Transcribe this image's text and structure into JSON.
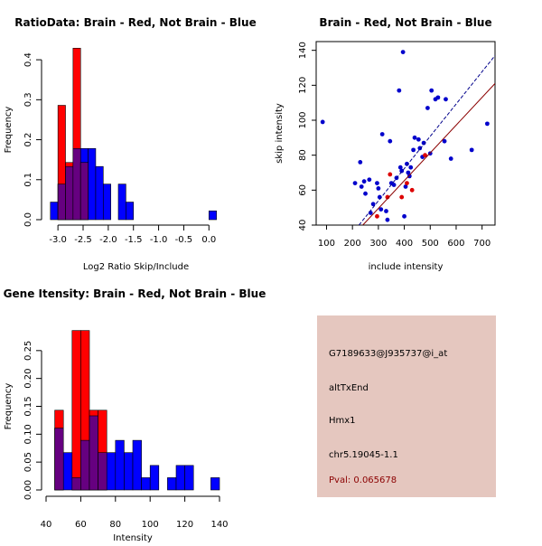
{
  "chart_data": [
    {
      "id": "ratio",
      "type": "bar",
      "title": "RatioData: Brain - Red, Not Brain - Blue",
      "xlabel": "Log2 Ratio Skip/Include",
      "ylabel": "Frequency",
      "xlim": [
        -3.2,
        0.3
      ],
      "ylim": [
        0,
        0.45
      ],
      "xticks": [
        -3.0,
        -2.5,
        -2.0,
        -1.5,
        -1.0,
        -0.5,
        0.0
      ],
      "xtick_labels": [
        "-3.0",
        "-2.5",
        "-2.0",
        "-1.5",
        "-1.0",
        "-0.5",
        "0.0"
      ],
      "yticks": [
        0.0,
        0.1,
        0.2,
        0.3,
        0.4
      ],
      "ytick_labels": [
        "0.0",
        "0.1",
        "0.2",
        "0.3",
        "0.4"
      ],
      "bin_width": 0.15,
      "series": [
        {
          "name": "Not Brain",
          "color": "#0000ff",
          "bins": [
            [
              -3.15,
              0.044
            ],
            [
              -3.0,
              0.089
            ],
            [
              -2.85,
              0.133
            ],
            [
              -2.7,
              0.178
            ],
            [
              -2.55,
              0.178
            ],
            [
              -2.4,
              0.178
            ],
            [
              -2.25,
              0.133
            ],
            [
              -2.1,
              0.089
            ],
            [
              -1.8,
              0.089
            ],
            [
              -1.65,
              0.044
            ],
            [
              0.0,
              0.022
            ]
          ]
        },
        {
          "name": "Brain",
          "color": "#ff0000",
          "bins": [
            [
              -3.0,
              0.286
            ],
            [
              -2.85,
              0.143
            ],
            [
              -2.7,
              0.429
            ],
            [
              -2.55,
              0.143
            ]
          ]
        }
      ],
      "overlap_color": "#660080"
    },
    {
      "id": "scatter",
      "type": "scatter",
      "title": "Brain - Red, Not Brain - Blue",
      "xlabel": "include intensity",
      "ylabel": "skip intensity",
      "xlim": [
        60,
        750
      ],
      "ylim": [
        40,
        145
      ],
      "xticks": [
        100,
        200,
        300,
        400,
        500,
        600,
        700
      ],
      "xtick_labels": [
        "100",
        "200",
        "300",
        "400",
        "500",
        "600",
        "700"
      ],
      "yticks": [
        40,
        60,
        80,
        100,
        120,
        140
      ],
      "ytick_labels": [
        "40",
        "60",
        "80",
        "100",
        "120",
        "140"
      ],
      "series": [
        {
          "name": "Not Brain",
          "color": "#0000cc",
          "points": [
            [
              85,
              99
            ],
            [
              210,
              64
            ],
            [
              230,
              76
            ],
            [
              235,
              62
            ],
            [
              245,
              65
            ],
            [
              250,
              58
            ],
            [
              265,
              66
            ],
            [
              270,
              47
            ],
            [
              280,
              52
            ],
            [
              295,
              64
            ],
            [
              300,
              61
            ],
            [
              305,
              56
            ],
            [
              310,
              49
            ],
            [
              315,
              92
            ],
            [
              330,
              48
            ],
            [
              335,
              43
            ],
            [
              345,
              88
            ],
            [
              350,
              64
            ],
            [
              360,
              63
            ],
            [
              370,
              67
            ],
            [
              380,
              117
            ],
            [
              385,
              73
            ],
            [
              390,
              71
            ],
            [
              395,
              139
            ],
            [
              400,
              45
            ],
            [
              405,
              62
            ],
            [
              410,
              75
            ],
            [
              415,
              70
            ],
            [
              420,
              68
            ],
            [
              425,
              73
            ],
            [
              435,
              83
            ],
            [
              440,
              90
            ],
            [
              455,
              89
            ],
            [
              460,
              84
            ],
            [
              470,
              79
            ],
            [
              475,
              87
            ],
            [
              490,
              107
            ],
            [
              500,
              81
            ],
            [
              505,
              117
            ],
            [
              520,
              112
            ],
            [
              530,
              113
            ],
            [
              555,
              88
            ],
            [
              560,
              112
            ],
            [
              580,
              78
            ],
            [
              660,
              83
            ],
            [
              720,
              98
            ]
          ]
        },
        {
          "name": "Brain",
          "color": "#dd0000",
          "points": [
            [
              295,
              45
            ],
            [
              335,
              56
            ],
            [
              345,
              69
            ],
            [
              390,
              56
            ],
            [
              410,
              64
            ],
            [
              430,
              60
            ],
            [
              480,
              80
            ]
          ]
        }
      ],
      "fit_lines": [
        {
          "name": "Not Brain fit",
          "color": "#00008b",
          "from": [
            225,
            40
          ],
          "to": [
            750,
            137
          ],
          "dash": "4,2"
        },
        {
          "name": "Brain fit",
          "color": "#8b0000",
          "from": [
            240,
            40
          ],
          "to": [
            750,
            121
          ],
          "dash": ""
        }
      ]
    },
    {
      "id": "gene",
      "type": "bar",
      "title": "Gene Itensity: Brain - Red, Not Brain - Blue",
      "xlabel": "Intensity",
      "ylabel": "Frequency",
      "xlim": [
        40,
        140
      ],
      "ylim": [
        0,
        0.3
      ],
      "xticks": [
        40,
        60,
        80,
        100,
        120,
        140
      ],
      "xtick_labels": [
        "40",
        "60",
        "80",
        "100",
        "120",
        "140"
      ],
      "yticks": [
        0.0,
        0.05,
        0.1,
        0.15,
        0.2,
        0.25
      ],
      "ytick_labels": [
        "0.00",
        "0.05",
        "0.10",
        "0.15",
        "0.20",
        "0.25"
      ],
      "bin_width": 5,
      "series": [
        {
          "name": "Not Brain",
          "color": "#0000ff",
          "bins": [
            [
              45,
              0.111
            ],
            [
              50,
              0.067
            ],
            [
              55,
              0.022
            ],
            [
              60,
              0.089
            ],
            [
              65,
              0.133
            ],
            [
              70,
              0.067
            ],
            [
              75,
              0.067
            ],
            [
              80,
              0.089
            ],
            [
              85,
              0.067
            ],
            [
              90,
              0.089
            ],
            [
              95,
              0.022
            ],
            [
              100,
              0.044
            ],
            [
              110,
              0.022
            ],
            [
              115,
              0.044
            ],
            [
              120,
              0.044
            ],
            [
              135,
              0.022
            ]
          ]
        },
        {
          "name": "Brain",
          "color": "#ff0000",
          "bins": [
            [
              45,
              0.143
            ],
            [
              55,
              0.286
            ],
            [
              60,
              0.286
            ],
            [
              65,
              0.143
            ],
            [
              70,
              0.143
            ]
          ]
        }
      ],
      "overlap_color": "#660080"
    }
  ],
  "info": {
    "probe": "G7189633@J935737@i_at",
    "event": "altTxEnd",
    "gene": "Hmx1",
    "location": "chr5.19045-1.1",
    "pval": "Pval: 0.065678"
  }
}
